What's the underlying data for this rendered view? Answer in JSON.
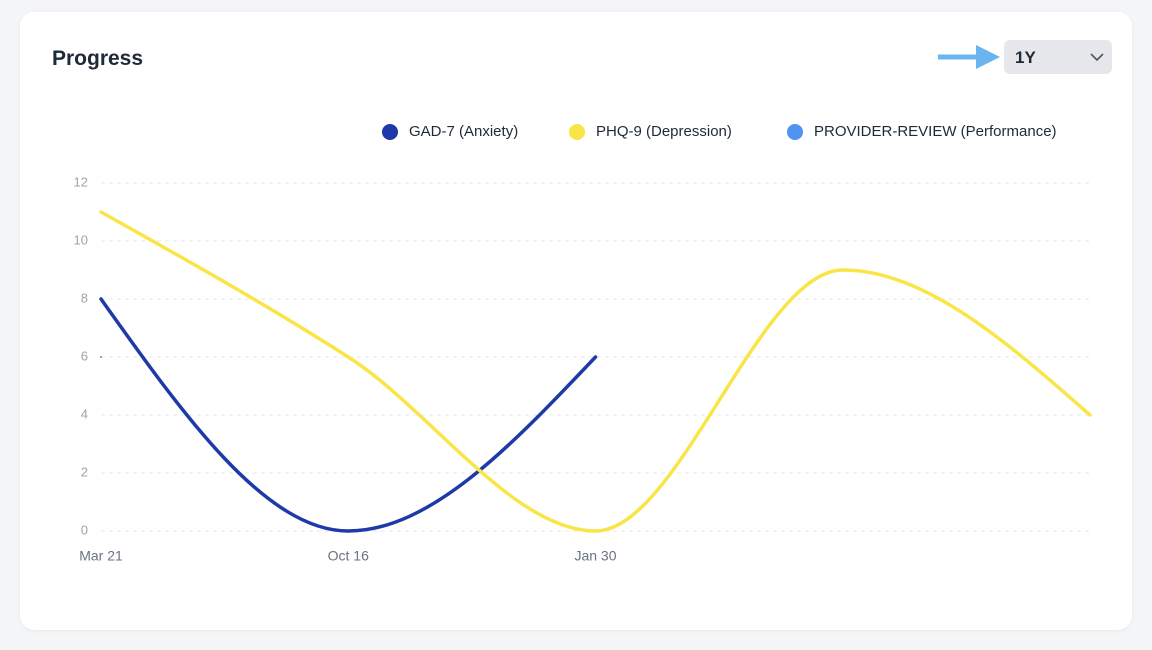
{
  "header": {
    "title": "Progress",
    "range": "1Y"
  },
  "chart_data": {
    "type": "line",
    "categories": [
      "Mar 21",
      "Oct 16",
      "Jan 30",
      null,
      null
    ],
    "series": [
      {
        "name": "GAD-7 (Anxiety)",
        "color": "#1f3aa8",
        "values": [
          8,
          0,
          6,
          null,
          null
        ]
      },
      {
        "name": "PHQ-9 (Depression)",
        "color": "#f9e547",
        "values": [
          11,
          6,
          0,
          9,
          4
        ]
      },
      {
        "name": "PROVIDER-REVIEW (Performance)",
        "color": "#4f94f0",
        "values": [
          6,
          null,
          null,
          null,
          null
        ]
      }
    ],
    "ylim": [
      0,
      12
    ],
    "yticks": [
      0,
      2,
      4,
      6,
      8,
      10,
      12
    ],
    "grid": true
  }
}
